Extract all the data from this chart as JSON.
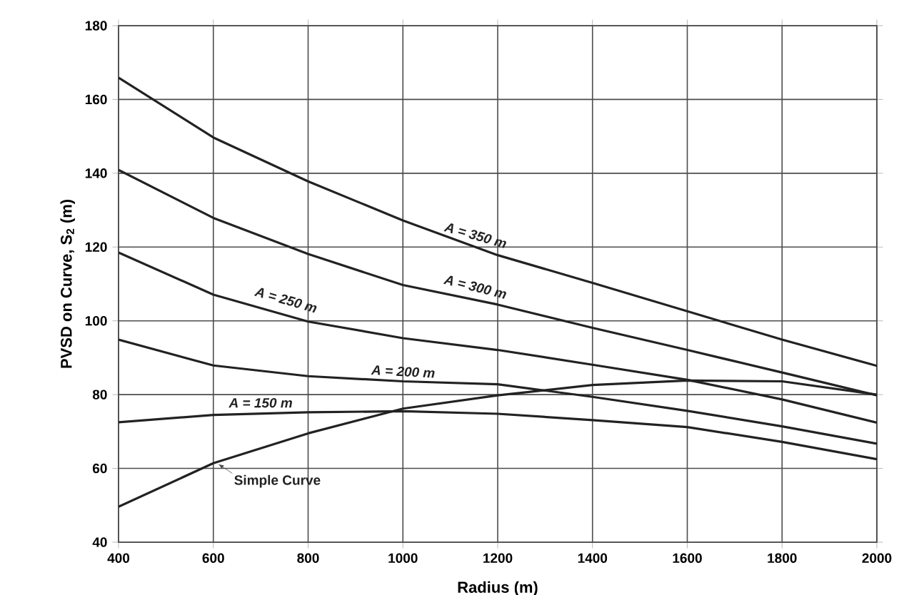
{
  "chart_data": {
    "type": "line",
    "xlabel": "Radius (m)",
    "ylabel": "PVSD on Curve, S$_{2}$ (m)",
    "x": [
      400,
      600,
      800,
      1000,
      1200,
      1400,
      1600,
      1800,
      2000
    ],
    "xlim": [
      400,
      2000
    ],
    "xticks": [
      400,
      600,
      800,
      1000,
      1200,
      1400,
      1600,
      1800,
      2000
    ],
    "ylim": [
      40,
      180
    ],
    "yticks": [
      40,
      60,
      80,
      100,
      120,
      140,
      160,
      180
    ],
    "grid": true,
    "marker": "none",
    "line_style": "solid",
    "series": [
      {
        "name": "A = 350 m",
        "color": "#222222",
        "values": [
          165.9,
          149.7,
          137.8,
          127.2,
          117.8,
          110.3,
          102.6,
          94.9,
          87.8
        ]
      },
      {
        "name": "A = 300 m",
        "color": "#222222",
        "values": [
          140.9,
          127.9,
          118.1,
          109.7,
          104.4,
          98.1,
          92.1,
          86.0,
          79.8
        ]
      },
      {
        "name": "A = 250 m",
        "color": "#222222",
        "values": [
          118.5,
          107.1,
          99.8,
          95.3,
          92.1,
          88.1,
          84.0,
          78.7,
          72.4
        ]
      },
      {
        "name": "A = 200 m",
        "color": "#222222",
        "values": [
          94.9,
          87.9,
          85.0,
          83.6,
          82.8,
          79.4,
          75.6,
          71.4,
          66.7
        ]
      },
      {
        "name": "A = 150 m",
        "color": "#222222",
        "values": [
          72.5,
          74.5,
          75.2,
          75.5,
          74.8,
          73.1,
          71.2,
          67.2,
          62.5
        ]
      },
      {
        "name": "Simple Curve",
        "color": "#222222",
        "values": [
          49.6,
          61.4,
          69.5,
          76.2,
          79.8,
          82.6,
          83.8,
          83.6,
          80.0
        ]
      }
    ]
  }
}
